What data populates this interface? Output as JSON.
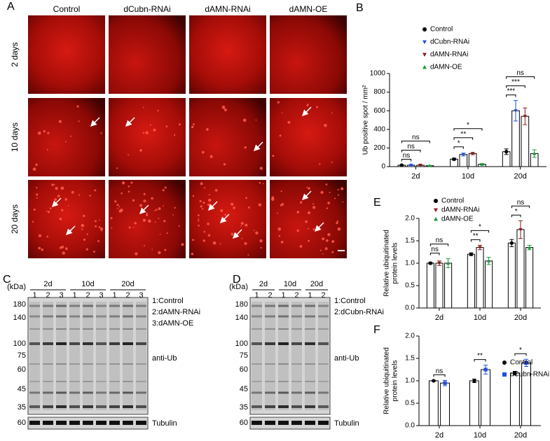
{
  "figure": {
    "panel_labels": [
      "A",
      "B",
      "C",
      "D",
      "E",
      "F"
    ],
    "panel_a": {
      "columns": [
        "Control",
        "dCubn-RNAi",
        "dAMN-RNAi",
        "dAMN-OE"
      ],
      "rows": [
        "2 days",
        "10 days",
        "20 days"
      ]
    },
    "panel_c": {
      "groups": [
        "2d",
        "10d",
        "20d"
      ],
      "lanes": [
        "1",
        "2",
        "3"
      ],
      "kda_label": "(kDa)",
      "markers": [
        180,
        140,
        100,
        75,
        60,
        45,
        35
      ],
      "loading_marker": 60,
      "legend": [
        "1:Control",
        "2:dAMN-RNAi",
        "3:dAMN-OE"
      ],
      "antibody": "anti-Ub",
      "loading": "Tubulin"
    },
    "panel_d": {
      "groups": [
        "2d",
        "10d",
        "20d"
      ],
      "lanes": [
        "1",
        "2"
      ],
      "kda_label": "(kDa)",
      "markers": [
        180,
        140,
        100,
        75,
        60,
        45,
        35
      ],
      "loading_marker": 60,
      "legend": [
        "1:Control",
        "2:dCubn-RNAi"
      ],
      "antibody": "anti-Ub",
      "loading": "Tubulin"
    }
  },
  "chart_data": [
    {
      "type": "bar",
      "ylabel": [
        "Ub positive spot / mm²"
      ],
      "categories": [
        "2d",
        "10d",
        "20d"
      ],
      "ylim": [
        0,
        1000
      ],
      "yticks": [
        0,
        200,
        400,
        600,
        800,
        1000
      ],
      "bar_fill": "#ffffff",
      "series": [
        {
          "name": "Control",
          "color": "#000000",
          "marker": "circle",
          "values": [
            15,
            80,
            160
          ],
          "errors": [
            3,
            10,
            30
          ]
        },
        {
          "name": "dCubn-RNAi",
          "color": "#1f4fe0",
          "marker": "triangle-down",
          "values": [
            15,
            130,
            600
          ],
          "errors": [
            4,
            15,
            110
          ]
        },
        {
          "name": "dAMN-RNAi",
          "color": "#8b1a1a",
          "marker": "triangle-down",
          "values": [
            15,
            140,
            540
          ],
          "errors": [
            4,
            12,
            90
          ]
        },
        {
          "name": "dAMN-OE",
          "color": "#1a9a3a",
          "marker": "triangle-up",
          "values": [
            10,
            25,
            140
          ],
          "errors": [
            3,
            6,
            40
          ]
        }
      ],
      "significance": [
        [
          "ns",
          "ns",
          "ns"
        ],
        [
          "*",
          "**",
          "*"
        ],
        [
          "***",
          "***",
          "ns"
        ]
      ]
    },
    {
      "type": "bar",
      "ylabel": [
        "Relative ubiquitinated",
        "protein levels"
      ],
      "categories": [
        "2d",
        "10d",
        "20d"
      ],
      "ylim": [
        0,
        2.0
      ],
      "yticks": [
        {
          "value": 0,
          "label": "0.0"
        },
        {
          "value": 0.5,
          "label": "0.5"
        },
        {
          "value": 1,
          "label": "1.0"
        },
        {
          "value": 1.5,
          "label": "1.5"
        },
        {
          "value": 2,
          "label": "2.0"
        }
      ],
      "bar_fill": "#ffffff",
      "series": [
        {
          "name": "Control",
          "color": "#000000",
          "marker": "circle",
          "values": [
            1.0,
            1.2,
            1.45
          ],
          "errors": [
            0.02,
            0.03,
            0.08
          ]
        },
        {
          "name": "dAMN-RNAi",
          "color": "#8b1a1a",
          "marker": "triangle-down",
          "values": [
            1.0,
            1.35,
            1.75
          ],
          "errors": [
            0.05,
            0.05,
            0.2
          ]
        },
        {
          "name": "dAMN-OE",
          "color": "#1a9a3a",
          "marker": "triangle-up",
          "values": [
            1.0,
            1.05,
            1.35
          ],
          "errors": [
            0.1,
            0.08,
            0.05
          ]
        }
      ],
      "significance": [
        [
          "ns",
          "ns"
        ],
        [
          "**",
          "*"
        ],
        [
          "*",
          "ns"
        ]
      ]
    },
    {
      "type": "bar",
      "ylabel": [
        "Relative ubiquitinated",
        "protein levels"
      ],
      "categories": [
        "2d",
        "10d",
        "20d"
      ],
      "ylim": [
        0,
        2.0
      ],
      "yticks": [
        {
          "value": 0,
          "label": "0.0"
        },
        {
          "value": 0.5,
          "label": "0.5"
        },
        {
          "value": 1,
          "label": "1.0"
        },
        {
          "value": 1.5,
          "label": "1.5"
        },
        {
          "value": 2,
          "label": "2.0"
        }
      ],
      "bar_fill": "#ffffff",
      "series": [
        {
          "name": "Control",
          "color": "#000000",
          "marker": "circle",
          "values": [
            1.0,
            1.0,
            1.17
          ],
          "errors": [
            0.01,
            0.04,
            0.04
          ]
        },
        {
          "name": "dCubn-RNAi",
          "color": "#1f4fe0",
          "marker": "square",
          "values": [
            0.95,
            1.25,
            1.4
          ],
          "errors": [
            0.06,
            0.1,
            0.08
          ]
        }
      ],
      "significance": [
        [
          "ns"
        ],
        [
          "**"
        ],
        [
          "*"
        ]
      ]
    }
  ]
}
